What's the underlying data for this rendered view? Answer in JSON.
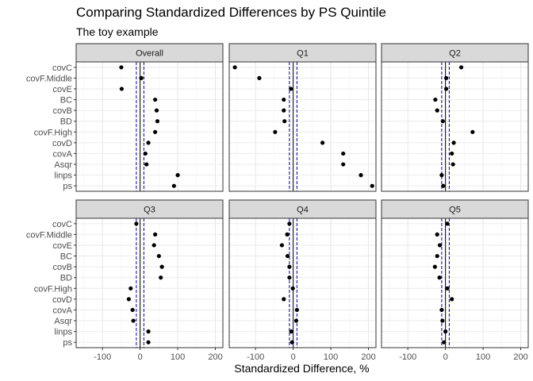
{
  "chart_data": {
    "type": "scatter",
    "title": "Comparing Standardized Differences by PS Quintile",
    "subtitle": "The toy example",
    "xlabel": "Standardized Difference, %",
    "ylabel": "",
    "xlim": [
      -170,
      220
    ],
    "x_ticks": [
      -100,
      0,
      100,
      200
    ],
    "x_tick_labels": [
      "-100",
      "0",
      "100",
      "200"
    ],
    "reference_lines": [
      -10,
      10
    ],
    "reference_line_color": "#00008b",
    "zero_line_color": "#000000",
    "point_color": "#000000",
    "grid": true,
    "categories": [
      "covC",
      "covF.Middle",
      "covE",
      "BC",
      "covB",
      "BD",
      "covF.High",
      "covD",
      "covA",
      "Asqr",
      "linps",
      "ps"
    ],
    "panels": [
      {
        "name": "Overall",
        "values": [
          -50,
          3,
          -49,
          40,
          44,
          46,
          40,
          22,
          14,
          17,
          100,
          90
        ]
      },
      {
        "name": "Q1",
        "values": [
          -155,
          -90,
          -6,
          -25,
          -25,
          -23,
          -48,
          78,
          133,
          133,
          180,
          210
        ]
      },
      {
        "name": "Q2",
        "values": [
          42,
          2,
          2,
          -27,
          -22,
          -7,
          72,
          22,
          17,
          20,
          -10,
          -6
        ]
      },
      {
        "name": "Q3",
        "values": [
          -10,
          40,
          37,
          50,
          58,
          55,
          -25,
          -30,
          -20,
          -18,
          22,
          22
        ]
      },
      {
        "name": "Q4",
        "values": [
          -10,
          -16,
          -30,
          -15,
          -10,
          -10,
          -1,
          -25,
          10,
          8,
          -5,
          -3
        ]
      },
      {
        "name": "Q5",
        "values": [
          5,
          -22,
          -15,
          -22,
          -28,
          -16,
          5,
          17,
          -10,
          -8,
          0,
          -4
        ]
      }
    ]
  }
}
